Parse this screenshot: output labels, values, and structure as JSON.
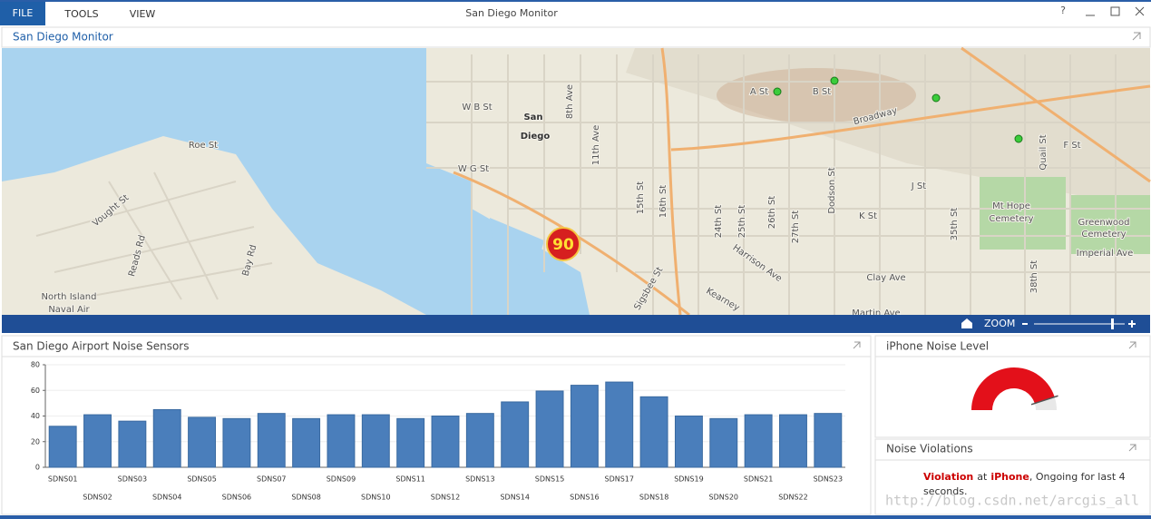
{
  "menu": [
    "FILE",
    "TOOLS",
    "VIEW"
  ],
  "window_title": "San Diego Monitor",
  "help": "?",
  "map_panel": {
    "title": "San Diego Monitor",
    "labels": [
      "San",
      "Diego",
      "Roe St",
      "Vought St",
      "W B St",
      "W G St",
      "8th Ave",
      "11th Ave",
      "15th St",
      "16th St",
      "24th St",
      "25th St",
      "26th St",
      "27th St",
      "Dodson St",
      "K St",
      "J St",
      "F St",
      "A St",
      "B St",
      "Broadway",
      "Harrison Ave",
      "Clay Ave",
      "Martin Ave",
      "Mt Hope",
      "Cemetery",
      "Greenwood",
      "Cemetery",
      "Imperial Ave",
      "North Island",
      "Naval Air",
      "Reads Rd",
      "Bay Rd",
      "Sigsbee St",
      "Kearney",
      "Quail St",
      "35th St",
      "38th St"
    ],
    "marker": 90,
    "zoom": "ZOOM"
  },
  "chart_panel": {
    "title": "San Diego Airport Noise Sensors",
    "chart_data": {
      "type": "bar",
      "categories": [
        "SDNS01",
        "SDNS02",
        "SDNS03",
        "SDNS04",
        "SDNS05",
        "SDNS06",
        "SDNS07",
        "SDNS08",
        "SDNS09",
        "SDNS10",
        "SDNS11",
        "SDNS12",
        "SDNS13",
        "SDNS14",
        "SDNS15",
        "SDNS16",
        "SDNS17",
        "SDNS18",
        "SDNS19",
        "SDNS20",
        "SDNS21",
        "SDNS22",
        "SDNS23"
      ],
      "values": [
        32,
        41,
        36,
        45,
        39,
        38,
        42,
        38,
        41,
        41,
        38,
        40,
        42,
        51,
        59.5,
        64,
        66.5,
        55,
        40,
        38,
        41,
        41,
        42
      ],
      "color": "#4a7ebb",
      "ylim": [
        0,
        80
      ],
      "yticks": [
        0,
        20,
        40,
        60,
        80
      ],
      "grid": true
    }
  },
  "gauge_panel": {
    "title": "iPhone Noise Level",
    "value": 90,
    "value_label": "90.00",
    "range": [
      0,
      100
    ],
    "color": "#e3101a"
  },
  "violations_panel": {
    "title": "Noise Violations",
    "message": [
      "Violation",
      "at",
      "iPhone",
      ", Ongoing for last 4",
      "seconds."
    ]
  },
  "watermark": "http://blog.csdn.net/arcgis_all"
}
